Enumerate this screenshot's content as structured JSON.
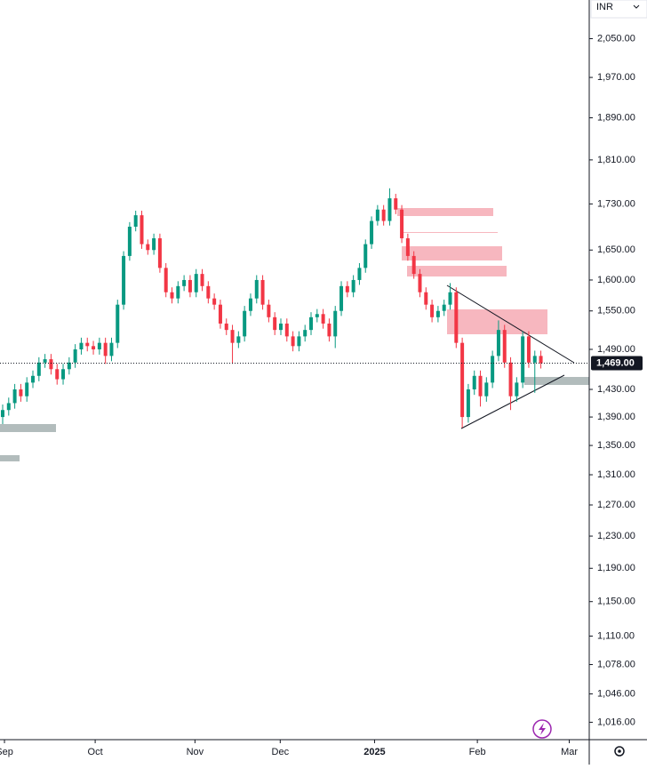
{
  "chart_data": {
    "type": "candlestick",
    "currency": "INR",
    "log_scale": true,
    "up_color": "#089981",
    "down_color": "#f23645",
    "ylim": [
      998,
      2133
    ],
    "yticks": [
      {
        "value": 2050,
        "label": "2,050.00"
      },
      {
        "value": 1970,
        "label": "1,970.00"
      },
      {
        "value": 1890,
        "label": "1,890.00"
      },
      {
        "value": 1810,
        "label": "1,810.00"
      },
      {
        "value": 1730,
        "label": "1,730.00"
      },
      {
        "value": 1650,
        "label": "1,650.00"
      },
      {
        "value": 1600,
        "label": "1,600.00"
      },
      {
        "value": 1550,
        "label": "1,550.00"
      },
      {
        "value": 1490,
        "label": "1,490.00"
      },
      {
        "value": 1430,
        "label": "1,430.00"
      },
      {
        "value": 1390,
        "label": "1,390.00"
      },
      {
        "value": 1350,
        "label": "1,350.00"
      },
      {
        "value": 1310,
        "label": "1,310.00"
      },
      {
        "value": 1270,
        "label": "1,270.00"
      },
      {
        "value": 1230,
        "label": "1,230.00"
      },
      {
        "value": 1190,
        "label": "1,190.00"
      },
      {
        "value": 1150,
        "label": "1,150.00"
      },
      {
        "value": 1110,
        "label": "1,110.00"
      },
      {
        "value": 1078,
        "label": "1,078.00"
      },
      {
        "value": 1046,
        "label": "1,046.00"
      },
      {
        "value": 1016,
        "label": "1,016.00"
      }
    ],
    "xlim": [
      -0.44,
      97
    ],
    "xticks": [
      {
        "value": 0.3,
        "label": "Sep"
      },
      {
        "value": 15.3,
        "label": "Oct"
      },
      {
        "value": 31.8,
        "label": "Nov"
      },
      {
        "value": 45.9,
        "label": "Dec"
      },
      {
        "value": 61.5,
        "label": "2025"
      },
      {
        "value": 78.5,
        "label": "Feb"
      },
      {
        "value": 93.7,
        "label": "Mar"
      }
    ],
    "last_price": {
      "value": 1469,
      "label": "1,469.00"
    },
    "open": [
      1390,
      1400,
      1410,
      1430,
      1420,
      1440,
      1450,
      1470,
      1475,
      1460,
      1445,
      1460,
      1470,
      1490,
      1500,
      1495,
      1490,
      1500,
      1480,
      1500,
      1560,
      1640,
      1690,
      1710,
      1660,
      1650,
      1670,
      1620,
      1580,
      1570,
      1590,
      1600,
      1580,
      1610,
      1590,
      1570,
      1560,
      1530,
      1520,
      1500,
      1510,
      1550,
      1570,
      1600,
      1560,
      1540,
      1520,
      1530,
      1510,
      1495,
      1510,
      1520,
      1540,
      1545,
      1530,
      1510,
      1550,
      1590,
      1580,
      1600,
      1620,
      1660,
      1700,
      1720,
      1700,
      1740,
      1720,
      1670,
      1640,
      1610,
      1580,
      1560,
      1540,
      1550,
      1560,
      1580,
      1500,
      1390,
      1430,
      1450,
      1420,
      1440,
      1480,
      1520,
      1470,
      1420,
      1440,
      1510,
      1470,
      1480
    ],
    "high": [
      1408,
      1418,
      1438,
      1438,
      1448,
      1458,
      1478,
      1483,
      1483,
      1468,
      1468,
      1478,
      1498,
      1508,
      1508,
      1503,
      1508,
      1508,
      1508,
      1568,
      1648,
      1698,
      1718,
      1718,
      1668,
      1678,
      1678,
      1628,
      1588,
      1598,
      1608,
      1608,
      1618,
      1618,
      1598,
      1578,
      1568,
      1538,
      1528,
      1518,
      1558,
      1578,
      1608,
      1608,
      1568,
      1548,
      1538,
      1538,
      1518,
      1518,
      1528,
      1548,
      1553,
      1553,
      1538,
      1558,
      1598,
      1598,
      1608,
      1628,
      1668,
      1708,
      1728,
      1728,
      1758,
      1748,
      1728,
      1678,
      1648,
      1618,
      1588,
      1568,
      1558,
      1568,
      1595,
      1588,
      1508,
      1438,
      1458,
      1458,
      1448,
      1488,
      1535,
      1528,
      1478,
      1448,
      1518,
      1518,
      1488,
      1488
    ],
    "low": [
      1380,
      1392,
      1402,
      1412,
      1412,
      1432,
      1442,
      1462,
      1452,
      1437,
      1437,
      1452,
      1462,
      1482,
      1487,
      1482,
      1482,
      1468,
      1472,
      1492,
      1552,
      1632,
      1682,
      1652,
      1642,
      1642,
      1612,
      1572,
      1562,
      1562,
      1582,
      1572,
      1572,
      1582,
      1562,
      1552,
      1522,
      1512,
      1468,
      1492,
      1502,
      1542,
      1562,
      1552,
      1532,
      1512,
      1512,
      1502,
      1487,
      1487,
      1502,
      1512,
      1532,
      1522,
      1502,
      1492,
      1542,
      1572,
      1572,
      1592,
      1612,
      1652,
      1692,
      1692,
      1692,
      1712,
      1662,
      1632,
      1602,
      1572,
      1552,
      1532,
      1532,
      1542,
      1552,
      1492,
      1375,
      1382,
      1422,
      1405,
      1412,
      1432,
      1472,
      1462,
      1400,
      1412,
      1432,
      1462,
      1425,
      1461
    ],
    "close": [
      1400,
      1410,
      1430,
      1420,
      1440,
      1450,
      1470,
      1475,
      1460,
      1445,
      1460,
      1470,
      1490,
      1500,
      1495,
      1490,
      1500,
      1480,
      1500,
      1560,
      1640,
      1690,
      1710,
      1660,
      1650,
      1670,
      1620,
      1580,
      1570,
      1590,
      1600,
      1580,
      1610,
      1590,
      1570,
      1560,
      1530,
      1520,
      1500,
      1510,
      1550,
      1570,
      1600,
      1560,
      1540,
      1520,
      1530,
      1510,
      1495,
      1510,
      1520,
      1540,
      1545,
      1530,
      1510,
      1550,
      1590,
      1580,
      1600,
      1620,
      1660,
      1700,
      1720,
      1700,
      1740,
      1720,
      1670,
      1640,
      1610,
      1580,
      1560,
      1540,
      1550,
      1560,
      1580,
      1500,
      1390,
      1430,
      1450,
      1420,
      1440,
      1480,
      1520,
      1470,
      1420,
      1440,
      1510,
      1470,
      1480,
      1469
    ]
  }
}
